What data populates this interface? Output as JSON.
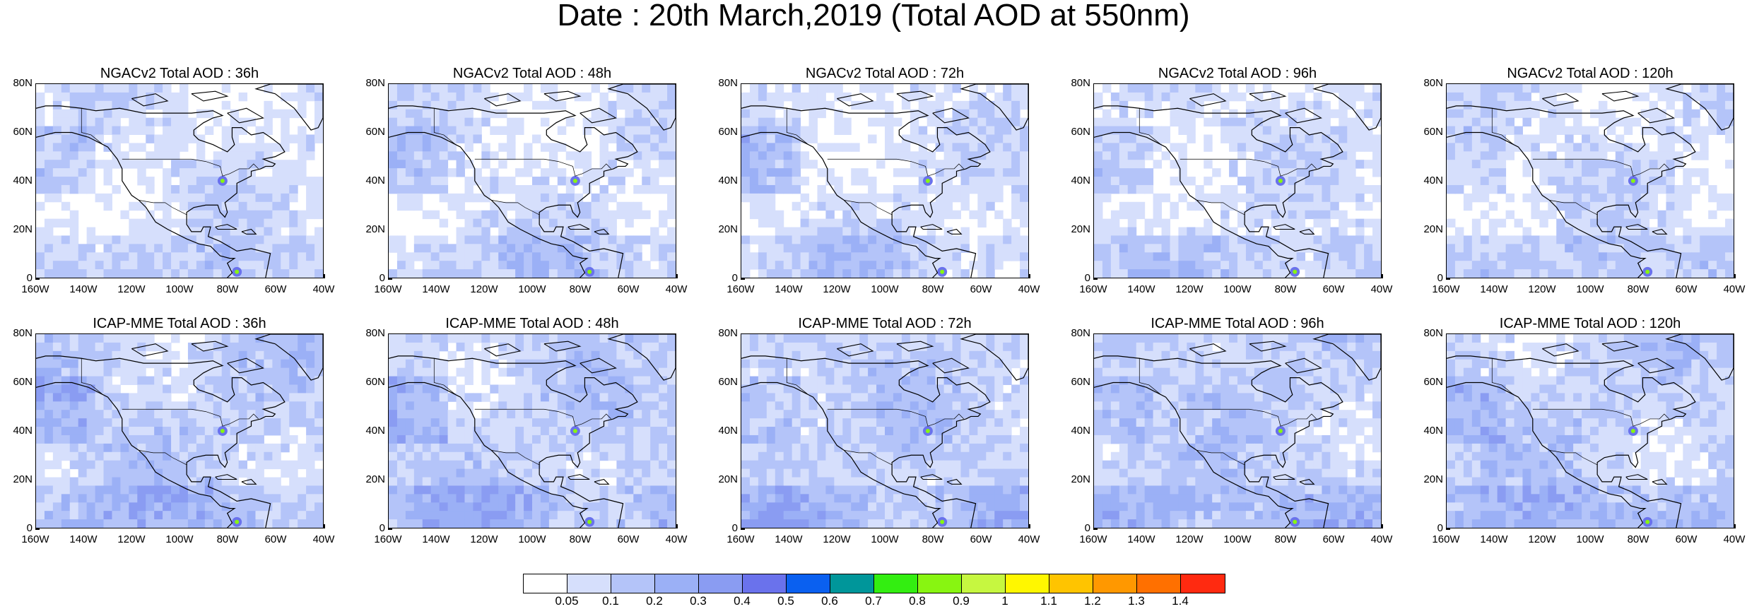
{
  "title": "Date : 20th March,2019 (Total AOD at 550nm)",
  "axes": {
    "y_ticks": [
      "80N",
      "60N",
      "40N",
      "20N",
      "0"
    ],
    "x_ticks": [
      "160W",
      "140W",
      "120W",
      "100W",
      "80W",
      "60W",
      "40W"
    ]
  },
  "panels": [
    {
      "title": "NGACv2 Total AOD : 36h",
      "model": "NGACv2",
      "lead": "36h"
    },
    {
      "title": "NGACv2 Total AOD : 48h",
      "model": "NGACv2",
      "lead": "48h"
    },
    {
      "title": "NGACv2 Total AOD : 72h",
      "model": "NGACv2",
      "lead": "72h"
    },
    {
      "title": "NGACv2 Total AOD : 96h",
      "model": "NGACv2",
      "lead": "96h"
    },
    {
      "title": "NGACv2 Total AOD : 120h",
      "model": "NGACv2",
      "lead": "120h"
    },
    {
      "title": "ICAP-MME Total AOD : 36h",
      "model": "ICAP-MME",
      "lead": "36h"
    },
    {
      "title": "ICAP-MME Total AOD : 48h",
      "model": "ICAP-MME",
      "lead": "48h"
    },
    {
      "title": "ICAP-MME Total AOD : 72h",
      "model": "ICAP-MME",
      "lead": "72h"
    },
    {
      "title": "ICAP-MME Total AOD : 96h",
      "model": "ICAP-MME",
      "lead": "96h"
    },
    {
      "title": "ICAP-MME Total AOD : 120h",
      "model": "ICAP-MME",
      "lead": "120h"
    }
  ],
  "colorbar": {
    "labels": [
      "0.05",
      "0.1",
      "0.2",
      "0.3",
      "0.4",
      "0.5",
      "0.6",
      "0.7",
      "0.8",
      "0.9",
      "1",
      "1.1",
      "1.2",
      "1.3",
      "1.4"
    ],
    "colors": [
      "#ffffff",
      "#d6dffc",
      "#b4c4f9",
      "#9bb0f6",
      "#8a9cf2",
      "#6a72ec",
      "#0a60f0",
      "#00969a",
      "#33ee11",
      "#88f511",
      "#c6f740",
      "#fff700",
      "#ffc400",
      "#ff9800",
      "#ff7000",
      "#ff2a10"
    ]
  }
}
